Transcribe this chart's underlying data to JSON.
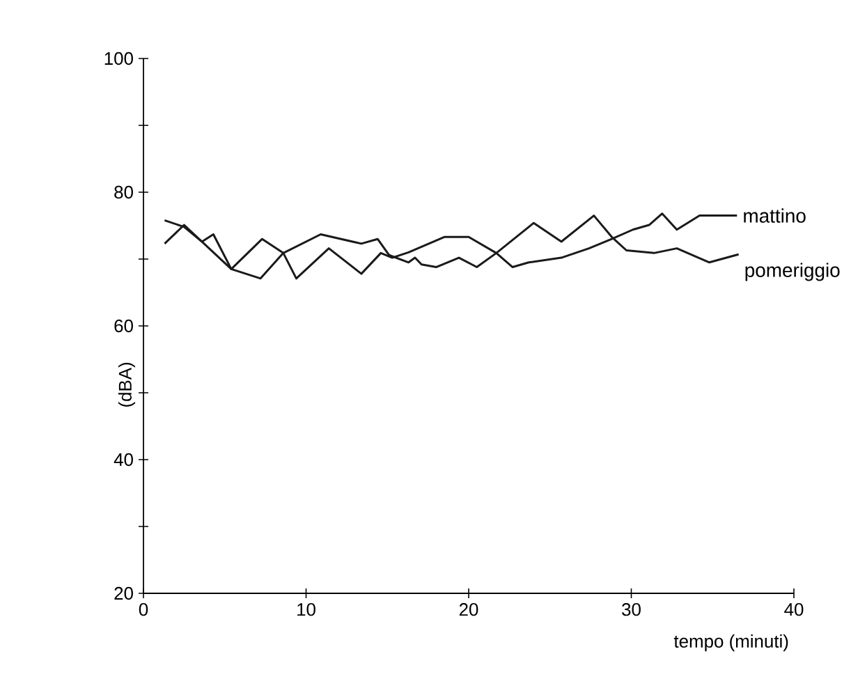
{
  "chart_data": {
    "type": "line",
    "xlabel": "tempo (minuti)",
    "ylabel": "(dBA)",
    "xlim": [
      0,
      40
    ],
    "xticks": [
      0,
      10,
      20,
      30,
      40
    ],
    "ylim": [
      20,
      100
    ],
    "yticks": [
      20,
      {
        "value": 30,
        "label": null
      },
      40,
      {
        "value": 50,
        "label": null
      },
      60,
      {
        "value": 70,
        "label": null
      },
      80,
      {
        "value": 90,
        "label": null
      },
      100
    ],
    "grid": false,
    "marker": "none",
    "line_style": "solid",
    "series": [
      {
        "name": "mattino",
        "color": "#1a1a1a",
        "x": [
          1.3,
          2.5,
          3.6,
          5.4,
          7.3,
          8.6,
          9.4,
          11.4,
          13.4,
          14.6,
          15.3,
          16.3,
          18.5,
          20,
          21.7,
          22.7,
          23.7,
          25.7,
          27.4,
          28.8,
          30.1,
          31.1,
          31.9,
          32.8,
          34.2,
          36.5
        ],
        "values": [
          75.8,
          74.8,
          72.6,
          68.5,
          73,
          70.9,
          67.1,
          71.6,
          67.8,
          70.9,
          70.2,
          71,
          73.3,
          73.3,
          70.9,
          68.8,
          69.5,
          70.2,
          71.6,
          73,
          74.4,
          75.1,
          76.8,
          74.4,
          76.5,
          76.5
        ]
      },
      {
        "name": "pomeriggio",
        "color": "#1a1a1a",
        "x": [
          1.3,
          2.5,
          3.6,
          4.3,
          5.4,
          7.2,
          8.6,
          10.9,
          13.4,
          14.4,
          15.1,
          16.3,
          16.7,
          17.1,
          18,
          19.4,
          20.5,
          21.7,
          24,
          25.7,
          27.7,
          28.8,
          29.7,
          31.4,
          32.8,
          34.8,
          36.6
        ],
        "values": [
          72.3,
          75.1,
          72.6,
          73.7,
          68.5,
          67.1,
          70.9,
          73.7,
          72.3,
          73,
          70.6,
          69.5,
          70.2,
          69.2,
          68.8,
          70.2,
          68.8,
          70.9,
          75.4,
          72.6,
          76.5,
          73.3,
          71.3,
          70.9,
          71.6,
          69.5,
          70.7
        ]
      }
    ]
  }
}
